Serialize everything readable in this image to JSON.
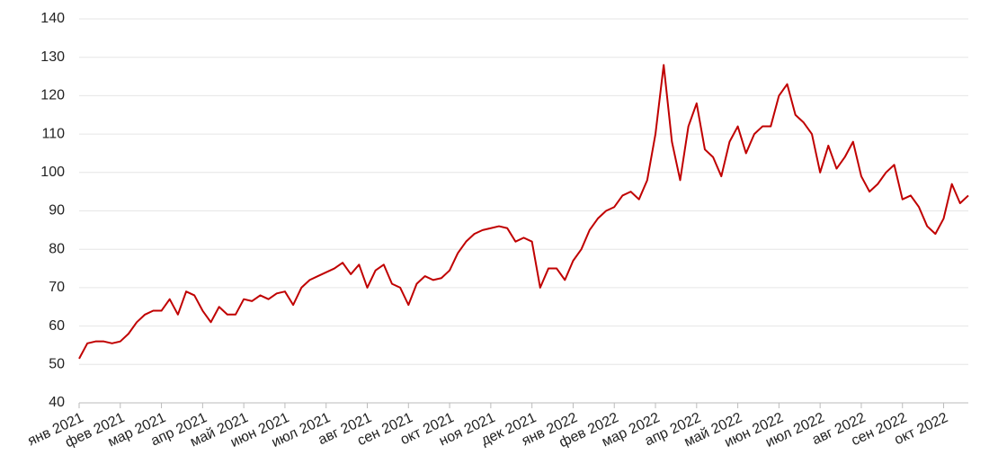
{
  "chart_data": {
    "type": "line",
    "color": "#c00000",
    "grid": true,
    "ylim": [
      40,
      140
    ],
    "yticks": [
      40,
      50,
      60,
      70,
      80,
      90,
      100,
      110,
      120,
      130,
      140
    ],
    "categories": [
      "янв 2021",
      null,
      null,
      null,
      null,
      "фев 2021",
      null,
      null,
      null,
      null,
      "мар 2021",
      null,
      null,
      null,
      null,
      "апр 2021",
      null,
      null,
      null,
      null,
      "май 2021",
      null,
      null,
      null,
      null,
      "июн 2021",
      null,
      null,
      null,
      null,
      "июл 2021",
      null,
      null,
      null,
      null,
      "авг 2021",
      null,
      null,
      null,
      null,
      "сен 2021",
      null,
      null,
      null,
      null,
      "окт 2021",
      null,
      null,
      null,
      null,
      "ноя 2021",
      null,
      null,
      null,
      null,
      "дек 2021",
      null,
      null,
      null,
      null,
      "янв 2022",
      null,
      null,
      null,
      null,
      "фев 2022",
      null,
      null,
      null,
      null,
      "мар 2022",
      null,
      null,
      null,
      null,
      "апр 2022",
      null,
      null,
      null,
      null,
      "май 2022",
      null,
      null,
      null,
      null,
      "июн 2022",
      null,
      null,
      null,
      null,
      "июл 2022",
      null,
      null,
      null,
      null,
      "авг 2022",
      null,
      null,
      null,
      null,
      "сен 2022",
      null,
      null,
      null,
      null,
      "окт 2022",
      null,
      null,
      null
    ],
    "values": [
      51.5,
      55.5,
      56,
      56,
      55.5,
      56,
      58,
      61,
      63,
      64,
      64,
      67,
      63,
      69,
      68,
      64,
      61,
      65,
      63,
      63,
      67,
      66.5,
      68,
      67,
      68.5,
      69,
      65.5,
      70,
      72,
      73,
      74,
      75,
      76.5,
      73.5,
      76,
      70,
      74.5,
      76,
      71,
      70,
      65.5,
      71,
      73,
      72,
      72.5,
      74.5,
      79,
      82,
      84,
      85,
      85.5,
      86,
      85.5,
      82,
      83,
      82,
      70,
      75,
      75,
      72,
      77,
      80,
      85,
      88,
      90,
      91,
      94,
      95,
      93,
      98,
      110,
      128,
      108,
      98,
      112,
      118,
      106,
      104,
      99,
      108,
      112,
      105,
      110,
      112,
      112,
      120,
      123,
      115,
      113,
      110,
      100,
      107,
      101,
      104,
      108,
      99,
      95,
      97,
      100,
      102,
      93,
      94,
      91,
      86,
      84,
      88,
      97,
      92,
      94
    ]
  }
}
